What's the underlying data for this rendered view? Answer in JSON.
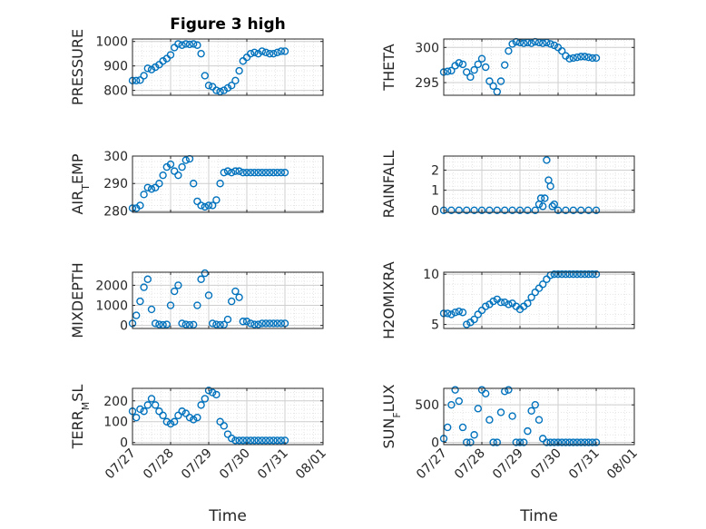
{
  "chart_data": {
    "type": "scatter",
    "title": "Figure 3 high",
    "marker": "open-circle",
    "marker_color": "#0072bd",
    "x_tick_labels": [
      "07/27",
      "07/28",
      "07/29",
      "07/30",
      "07/31",
      "08/01"
    ],
    "xlabel": "Time",
    "grid": true,
    "panels": [
      {
        "ylabel": "PRESSURE",
        "ylabel_sub": "",
        "ylabel_tail": "",
        "ylim": [
          780,
          1010
        ],
        "yticks": [
          800,
          900,
          1000
        ],
        "yticklabels": [
          "800",
          "900",
          "1000"
        ],
        "x": [
          0,
          0.1,
          0.2,
          0.3,
          0.4,
          0.5,
          0.6,
          0.7,
          0.8,
          0.9,
          1,
          1.1,
          1.2,
          1.3,
          1.4,
          1.5,
          1.6,
          1.7,
          1.8,
          1.9,
          2,
          2.1,
          2.2,
          2.3,
          2.4,
          2.5,
          2.6,
          2.7,
          2.8,
          2.9,
          3,
          3.1,
          3.2,
          3.3,
          3.4,
          3.5,
          3.6,
          3.7,
          3.8,
          3.9,
          4
        ],
        "values": [
          840,
          840,
          842,
          860,
          890,
          885,
          895,
          905,
          920,
          930,
          945,
          975,
          990,
          985,
          990,
          988,
          990,
          985,
          950,
          860,
          820,
          815,
          800,
          795,
          800,
          810,
          820,
          840,
          880,
          920,
          935,
          950,
          955,
          950,
          960,
          955,
          950,
          950,
          955,
          960,
          960
        ]
      },
      {
        "ylabel": "THETA",
        "ylabel_sub": "",
        "ylabel_tail": "",
        "ylim": [
          293.2,
          301.2
        ],
        "yticks": [
          295,
          300
        ],
        "yticklabels": [
          "295",
          "300"
        ],
        "x": [
          0,
          0.1,
          0.2,
          0.3,
          0.4,
          0.5,
          0.6,
          0.7,
          0.8,
          0.9,
          1,
          1.1,
          1.2,
          1.3,
          1.4,
          1.5,
          1.6,
          1.7,
          1.8,
          1.9,
          2,
          2.1,
          2.2,
          2.3,
          2.4,
          2.5,
          2.6,
          2.7,
          2.8,
          2.9,
          3,
          3.1,
          3.2,
          3.3,
          3.4,
          3.5,
          3.6,
          3.7,
          3.8,
          3.9,
          4
        ],
        "values": [
          296.5,
          296.6,
          296.7,
          297.4,
          297.8,
          297.6,
          296.5,
          295.8,
          296.8,
          297.6,
          298.4,
          297.2,
          295.2,
          294.5,
          293.7,
          295.2,
          297.5,
          299.5,
          300.5,
          300.8,
          300.7,
          300.6,
          300.7,
          300.6,
          300.8,
          300.7,
          300.6,
          300.7,
          300.5,
          300.3,
          300.0,
          299.5,
          298.8,
          298.4,
          298.5,
          298.6,
          298.7,
          298.7,
          298.6,
          298.5,
          298.5
        ]
      },
      {
        "ylabel": "AIR",
        "ylabel_sub": "T",
        "ylabel_tail": "EMP",
        "ylim": [
          279.5,
          300
        ],
        "yticks": [
          280,
          290,
          300
        ],
        "yticklabels": [
          "280",
          "290",
          "300"
        ],
        "x": [
          0,
          0.1,
          0.2,
          0.3,
          0.4,
          0.5,
          0.6,
          0.7,
          0.8,
          0.9,
          1,
          1.1,
          1.2,
          1.3,
          1.4,
          1.5,
          1.6,
          1.7,
          1.8,
          1.9,
          2,
          2.1,
          2.2,
          2.3,
          2.4,
          2.5,
          2.6,
          2.7,
          2.8,
          2.9,
          3,
          3.1,
          3.2,
          3.3,
          3.4,
          3.5,
          3.6,
          3.7,
          3.8,
          3.9,
          4
        ],
        "values": [
          281,
          281,
          282,
          286,
          288.5,
          288,
          288.5,
          290,
          293,
          296,
          297,
          294.5,
          293,
          296,
          298.5,
          299,
          290,
          283.5,
          282,
          281.5,
          282,
          282,
          284,
          290,
          294,
          294.5,
          294,
          294.5,
          294.5,
          294,
          294,
          294,
          294,
          294,
          294,
          294,
          294,
          294,
          294,
          294,
          294
        ]
      },
      {
        "ylabel": "RAINFALL",
        "ylabel_sub": "",
        "ylabel_tail": "",
        "ylim": [
          -0.1,
          2.7
        ],
        "yticks": [
          0,
          1,
          2
        ],
        "yticklabels": [
          "0",
          "1",
          "2"
        ],
        "x": [
          0,
          0.2,
          0.4,
          0.6,
          0.8,
          1,
          1.2,
          1.4,
          1.6,
          1.8,
          2,
          2.2,
          2.4,
          2.5,
          2.55,
          2.6,
          2.65,
          2.7,
          2.75,
          2.8,
          2.85,
          2.9,
          3,
          3.2,
          3.4,
          3.6,
          3.8,
          4
        ],
        "values": [
          0,
          0,
          0,
          0,
          0,
          0,
          0,
          0,
          0,
          0,
          0,
          0,
          0,
          0.3,
          0.6,
          0.2,
          0.6,
          2.5,
          1.5,
          1.2,
          0.2,
          0.3,
          0,
          0,
          0,
          0,
          0,
          0
        ]
      },
      {
        "ylabel": "MIXDEPTH",
        "ylabel_sub": "",
        "ylabel_tail": "",
        "ylim": [
          -150,
          2650
        ],
        "yticks": [
          0,
          1000,
          2000
        ],
        "yticklabels": [
          "0",
          "1000",
          "2000"
        ],
        "x": [
          0,
          0.1,
          0.2,
          0.3,
          0.4,
          0.5,
          0.6,
          0.7,
          0.8,
          0.9,
          1,
          1.1,
          1.2,
          1.3,
          1.4,
          1.5,
          1.6,
          1.7,
          1.8,
          1.9,
          2,
          2.1,
          2.2,
          2.3,
          2.4,
          2.5,
          2.6,
          2.7,
          2.8,
          2.9,
          3,
          3.1,
          3.2,
          3.3,
          3.4,
          3.5,
          3.6,
          3.7,
          3.8,
          3.9,
          4
        ],
        "values": [
          100,
          500,
          1200,
          1900,
          2300,
          800,
          100,
          50,
          30,
          50,
          1000,
          1700,
          2000,
          100,
          50,
          30,
          40,
          1000,
          2300,
          2600,
          1500,
          100,
          50,
          30,
          40,
          300,
          1200,
          1700,
          1400,
          200,
          200,
          100,
          50,
          50,
          100,
          100,
          100,
          100,
          100,
          100,
          100
        ]
      },
      {
        "ylabel": "H2OMIXRA",
        "ylabel_sub": "",
        "ylabel_tail": "",
        "ylim": [
          4.6,
          10.2
        ],
        "yticks": [
          5,
          10
        ],
        "yticklabels": [
          "5",
          "10"
        ],
        "x": [
          0,
          0.1,
          0.2,
          0.3,
          0.4,
          0.5,
          0.6,
          0.7,
          0.8,
          0.9,
          1,
          1.1,
          1.2,
          1.3,
          1.4,
          1.5,
          1.6,
          1.7,
          1.8,
          1.9,
          2,
          2.1,
          2.2,
          2.3,
          2.4,
          2.5,
          2.6,
          2.7,
          2.8,
          2.9,
          3,
          3.1,
          3.2,
          3.3,
          3.4,
          3.5,
          3.6,
          3.7,
          3.8,
          3.9,
          4
        ],
        "values": [
          6.1,
          6.1,
          6.0,
          6.2,
          6.3,
          6.2,
          5.0,
          5.2,
          5.5,
          6.0,
          6.4,
          6.8,
          7.0,
          7.3,
          7.5,
          7.2,
          7.2,
          7.0,
          7.1,
          6.8,
          6.5,
          6.8,
          7.1,
          7.7,
          8.2,
          8.6,
          9.0,
          9.5,
          9.9,
          10.0,
          10.0,
          10.0,
          10.0,
          10.0,
          10.0,
          10.0,
          10.0,
          10.0,
          10.0,
          10.0,
          10.0
        ]
      },
      {
        "ylabel": "TERR",
        "ylabel_sub": "M",
        "ylabel_tail": "SL",
        "ylim": [
          -10,
          260
        ],
        "yticks": [
          0,
          100,
          200
        ],
        "yticklabels": [
          "0",
          "100",
          "200"
        ],
        "x": [
          0,
          0.1,
          0.2,
          0.3,
          0.4,
          0.5,
          0.6,
          0.7,
          0.8,
          0.9,
          1,
          1.1,
          1.2,
          1.3,
          1.4,
          1.5,
          1.6,
          1.7,
          1.8,
          1.9,
          2,
          2.1,
          2.2,
          2.3,
          2.4,
          2.5,
          2.6,
          2.7,
          2.8,
          2.9,
          3,
          3.1,
          3.2,
          3.3,
          3.4,
          3.5,
          3.6,
          3.7,
          3.8,
          3.9,
          4
        ],
        "values": [
          150,
          120,
          160,
          150,
          180,
          210,
          180,
          150,
          130,
          100,
          90,
          100,
          130,
          150,
          140,
          120,
          110,
          120,
          180,
          210,
          250,
          240,
          230,
          100,
          80,
          40,
          20,
          10,
          10,
          10,
          10,
          10,
          10,
          10,
          10,
          10,
          10,
          10,
          10,
          10,
          10
        ]
      },
      {
        "ylabel": "SUN",
        "ylabel_sub": "F",
        "ylabel_tail": "LUX",
        "ylim": [
          -30,
          720
        ],
        "yticks": [
          0,
          500
        ],
        "yticklabels": [
          "0",
          "500"
        ],
        "x": [
          0,
          0.1,
          0.2,
          0.3,
          0.4,
          0.5,
          0.6,
          0.7,
          0.8,
          0.9,
          1,
          1.1,
          1.2,
          1.3,
          1.4,
          1.5,
          1.6,
          1.7,
          1.8,
          1.9,
          2,
          2.1,
          2.2,
          2.3,
          2.4,
          2.5,
          2.6,
          2.7,
          2.8,
          2.9,
          3,
          3.1,
          3.2,
          3.3,
          3.4,
          3.5,
          3.6,
          3.7,
          3.8,
          3.9,
          4
        ],
        "values": [
          50,
          200,
          500,
          700,
          550,
          200,
          0,
          0,
          100,
          450,
          700,
          650,
          300,
          0,
          0,
          400,
          680,
          700,
          350,
          0,
          0,
          0,
          150,
          420,
          500,
          300,
          50,
          0,
          0,
          0,
          0,
          0,
          0,
          0,
          0,
          0,
          0,
          0,
          0,
          0,
          0
        ]
      }
    ]
  }
}
